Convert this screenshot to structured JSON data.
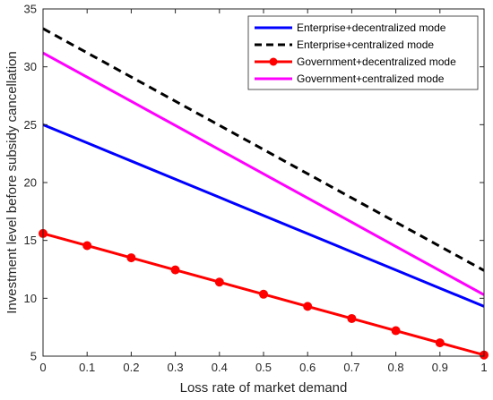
{
  "chart_data": {
    "type": "line",
    "title": "",
    "xlabel": "Loss rate of market demand",
    "ylabel": "Investment level before subsidy cancellation",
    "xlim": [
      0,
      1
    ],
    "ylim": [
      5,
      35
    ],
    "x_ticks": [
      0,
      0.1,
      0.2,
      0.3,
      0.4,
      0.5,
      0.6,
      0.7,
      0.8,
      0.9,
      1
    ],
    "x_tick_labels": [
      "0",
      "0.1",
      "0.2",
      "0.3",
      "0.4",
      "0.5",
      "0.6",
      "0.7",
      "0.8",
      "0.9",
      "1"
    ],
    "y_ticks": [
      5,
      10,
      15,
      20,
      25,
      30,
      35
    ],
    "y_tick_labels": [
      "5",
      "10",
      "15",
      "20",
      "25",
      "30",
      "35"
    ],
    "grid": false,
    "legend_position": "top-right",
    "x": [
      0,
      0.1,
      0.2,
      0.3,
      0.4,
      0.5,
      0.6,
      0.7,
      0.8,
      0.9,
      1
    ],
    "series": [
      {
        "name": "Enterprise+decentralized mode",
        "color": "#0000ff",
        "style": "solid",
        "marker": "none",
        "values": [
          25.0,
          23.43,
          21.86,
          20.29,
          18.72,
          17.15,
          15.58,
          14.01,
          12.44,
          10.87,
          9.3
        ]
      },
      {
        "name": "Enterprise+centralized mode",
        "color": "#000000",
        "style": "dashed",
        "marker": "none",
        "values": [
          33.3,
          31.21,
          29.12,
          27.03,
          24.94,
          22.85,
          20.76,
          18.67,
          16.58,
          14.49,
          12.4
        ]
      },
      {
        "name": "Government+decentralized mode",
        "color": "#ff0000",
        "style": "solid",
        "marker": "circle",
        "values": [
          15.6,
          14.55,
          13.5,
          12.45,
          11.4,
          10.35,
          9.3,
          8.25,
          7.2,
          6.15,
          5.1
        ]
      },
      {
        "name": "Government+centralized mode",
        "color": "#ff00ff",
        "style": "solid",
        "marker": "none",
        "values": [
          31.2,
          29.11,
          27.02,
          24.93,
          22.84,
          20.75,
          18.66,
          16.57,
          14.48,
          12.39,
          10.3
        ]
      }
    ]
  }
}
